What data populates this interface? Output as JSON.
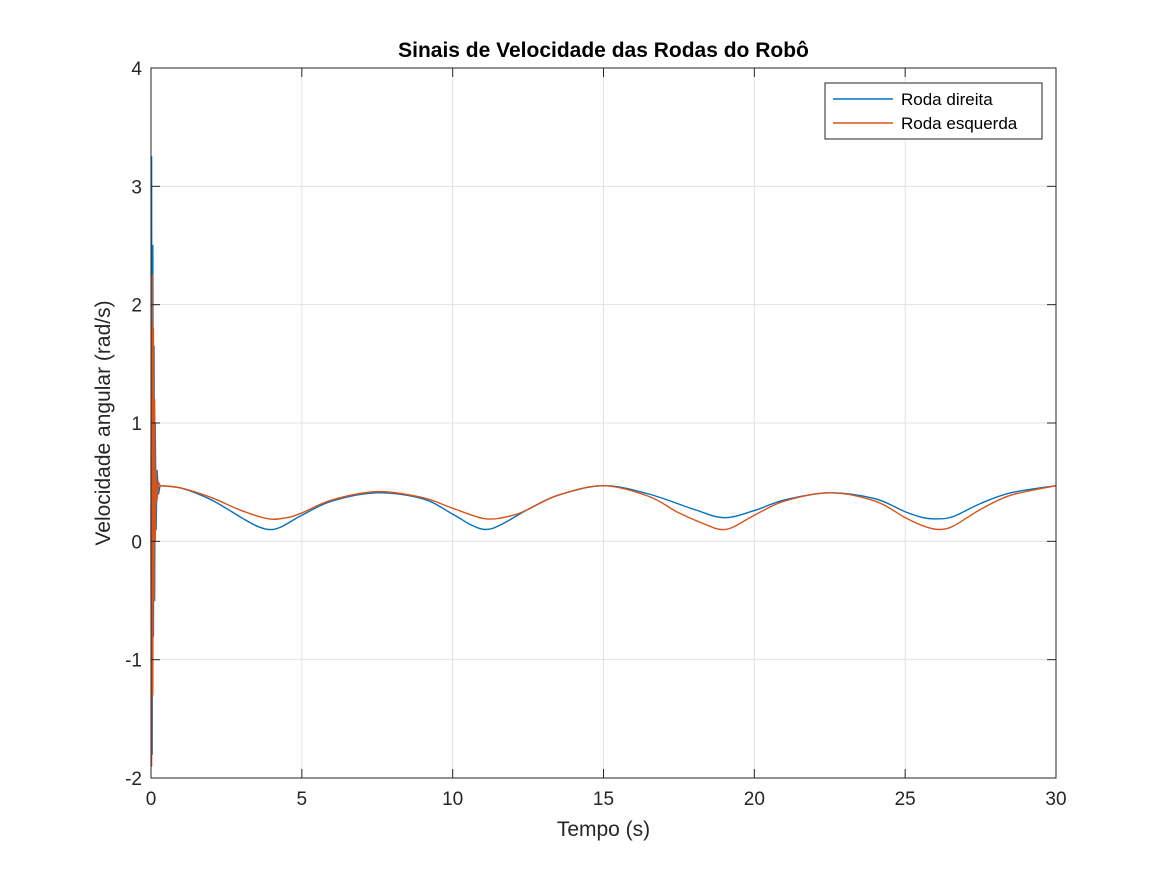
{
  "chart_data": {
    "type": "line",
    "title": "Sinais de Velocidade das Rodas do Robô",
    "xlabel": "Tempo (s)",
    "ylabel": "Velocidade angular (rad/s)",
    "xlim": [
      0,
      30
    ],
    "ylim": [
      -2,
      4
    ],
    "xticks": [
      0,
      5,
      10,
      15,
      20,
      25,
      30
    ],
    "yticks": [
      -2,
      -1,
      0,
      1,
      2,
      3,
      4
    ],
    "xtick_labels": [
      "0",
      "5",
      "10",
      "15",
      "20",
      "25",
      "30"
    ],
    "ytick_labels": [
      "-2",
      "-1",
      "0",
      "1",
      "2",
      "3",
      "4"
    ],
    "grid": true,
    "legend_position": "top-right",
    "series": [
      {
        "name": "Roda direita",
        "color": "#0072BD",
        "transient": [
          [
            0,
            0
          ],
          [
            0.02,
            3.25
          ],
          [
            0.04,
            -1.8
          ],
          [
            0.06,
            2.5
          ],
          [
            0.08,
            -0.8
          ],
          [
            0.1,
            1.65
          ],
          [
            0.12,
            -0.5
          ],
          [
            0.14,
            1.0
          ],
          [
            0.17,
            0.1
          ],
          [
            0.2,
            0.6
          ],
          [
            0.25,
            0.4
          ],
          [
            0.3,
            0.47
          ]
        ],
        "x": [
          0.3,
          1,
          2,
          3,
          3.5,
          3.9,
          4.3,
          5,
          6,
          7.5,
          9,
          10,
          10.6,
          11.1,
          11.6,
          12.5,
          13.5,
          15,
          16.5,
          18,
          19,
          20,
          21,
          22.5,
          24,
          25,
          25.6,
          26.1,
          26.6,
          27.5,
          28.5,
          30
        ],
        "y": [
          0.47,
          0.45,
          0.35,
          0.2,
          0.13,
          0.1,
          0.12,
          0.22,
          0.34,
          0.41,
          0.36,
          0.23,
          0.14,
          0.1,
          0.14,
          0.27,
          0.39,
          0.47,
          0.4,
          0.27,
          0.2,
          0.26,
          0.35,
          0.41,
          0.36,
          0.25,
          0.2,
          0.19,
          0.21,
          0.32,
          0.41,
          0.47
        ]
      },
      {
        "name": "Roda esquerda",
        "color": "#D95319",
        "transient": [
          [
            0,
            0
          ],
          [
            0.02,
            -1.9
          ],
          [
            0.04,
            2.25
          ],
          [
            0.06,
            -1.3
          ],
          [
            0.08,
            1.8
          ],
          [
            0.1,
            -0.5
          ],
          [
            0.12,
            1.2
          ],
          [
            0.14,
            0.0
          ],
          [
            0.17,
            0.6
          ],
          [
            0.2,
            0.35
          ],
          [
            0.25,
            0.5
          ],
          [
            0.3,
            0.47
          ]
        ],
        "x": [
          0.3,
          1,
          2,
          3,
          3.9,
          4.5,
          5,
          6,
          7.5,
          9,
          10,
          11.1,
          12,
          12.5,
          13.5,
          15,
          16.5,
          17.5,
          18.5,
          18.9,
          19.3,
          20,
          21,
          22.5,
          24,
          25,
          25.6,
          26.1,
          26.6,
          27.5,
          28.5,
          30
        ],
        "y": [
          0.47,
          0.45,
          0.37,
          0.26,
          0.19,
          0.2,
          0.24,
          0.35,
          0.42,
          0.37,
          0.28,
          0.19,
          0.22,
          0.27,
          0.39,
          0.47,
          0.38,
          0.24,
          0.13,
          0.1,
          0.12,
          0.22,
          0.34,
          0.41,
          0.34,
          0.2,
          0.13,
          0.1,
          0.13,
          0.27,
          0.39,
          0.47
        ]
      }
    ]
  }
}
